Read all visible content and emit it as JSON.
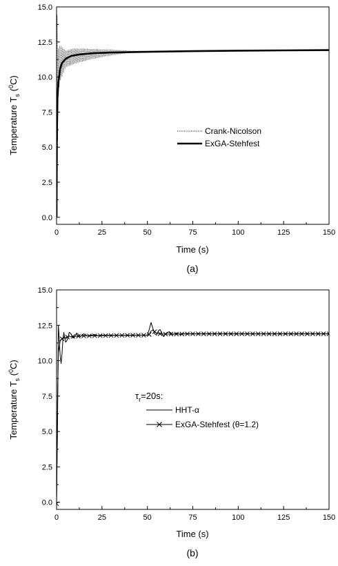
{
  "chart_data": [
    {
      "type": "line",
      "caption": "(a)",
      "xlabel": "Time (s)",
      "ylabel_main": "Temperature T",
      "ylabel_sub": "s",
      "ylabel_open": " (",
      "ylabel_sup": "0",
      "ylabel_close": "C)",
      "xlim": [
        0,
        150
      ],
      "ylim": [
        -0.5,
        15.0
      ],
      "x_ticks": [
        "0",
        "25",
        "50",
        "75",
        "100",
        "125",
        "150"
      ],
      "y_ticks": [
        "0.0",
        "2.5",
        "5.0",
        "7.5",
        "10.0",
        "12.5",
        "15.0"
      ],
      "legend_position": "center-right",
      "series": [
        {
          "name": "Crank-Nicolson",
          "style": "dotted-oscillating",
          "x": [
            0,
            0.3,
            0.6,
            1,
            2,
            5,
            10,
            20,
            30,
            40,
            50,
            75,
            100,
            125,
            150
          ],
          "y": [
            0.0,
            15.0,
            9.0,
            10.5,
            11.0,
            11.3,
            11.5,
            11.65,
            11.75,
            11.8,
            11.83,
            11.86,
            11.88,
            11.9,
            11.92
          ],
          "amplitude": [
            0,
            0,
            4.0,
            1.5,
            1.3,
            0.6,
            0.55,
            0.35,
            0.22,
            0.08,
            0.03,
            0,
            0,
            0,
            0
          ]
        },
        {
          "name": "ExGA-Stehfest",
          "style": "thick-solid",
          "x": [
            0,
            0.2,
            0.5,
            1,
            2,
            3,
            5,
            8,
            12,
            20,
            30,
            50,
            75,
            100,
            125,
            150
          ],
          "y": [
            0.0,
            6.0,
            8.5,
            9.6,
            10.6,
            11.0,
            11.3,
            11.5,
            11.6,
            11.7,
            11.75,
            11.8,
            11.85,
            11.88,
            11.9,
            11.92
          ]
        }
      ]
    },
    {
      "type": "line",
      "caption": "(b)",
      "xlabel": "Time (s)",
      "ylabel_main": "Temperature T",
      "ylabel_sub": "s",
      "ylabel_open": " (",
      "ylabel_sup": "0",
      "ylabel_close": "C)",
      "xlim": [
        0,
        150
      ],
      "ylim": [
        -0.5,
        15.0
      ],
      "x_ticks": [
        "0",
        "25",
        "50",
        "75",
        "100",
        "125",
        "150"
      ],
      "y_ticks": [
        "0.0",
        "2.5",
        "5.0",
        "7.5",
        "10.0",
        "12.5",
        "15.0"
      ],
      "legend_position": "center-right",
      "annotation_main": "τ",
      "annotation_sub": "r",
      "annotation_rest": "=20s:",
      "series": [
        {
          "name": "HHT-α",
          "style": "thin-solid",
          "x": [
            0,
            0.5,
            1,
            1.5,
            2,
            2.5,
            3,
            3.5,
            4,
            4.5,
            5,
            6,
            7,
            8,
            9,
            10,
            11,
            12,
            13,
            14,
            15,
            17,
            19,
            21,
            23,
            25,
            30,
            35,
            40,
            45,
            50,
            51,
            52,
            53,
            54,
            55,
            56,
            57,
            58,
            59,
            60,
            62,
            64,
            66,
            68,
            70,
            75,
            100,
            125,
            150
          ],
          "y": [
            0.0,
            5.0,
            12.5,
            11.5,
            10.3,
            9.8,
            10.5,
            11.5,
            12.0,
            11.6,
            11.3,
            11.5,
            12.0,
            11.9,
            11.6,
            11.7,
            11.95,
            11.85,
            11.7,
            11.8,
            11.9,
            11.75,
            11.8,
            11.85,
            11.75,
            11.8,
            11.8,
            11.8,
            11.78,
            11.8,
            11.8,
            12.2,
            12.7,
            12.3,
            11.9,
            11.8,
            12.1,
            12.2,
            11.9,
            11.7,
            11.9,
            12.05,
            11.85,
            11.95,
            11.85,
            11.9,
            11.9,
            11.9,
            11.9,
            11.9
          ]
        },
        {
          "name": "ExGA-Stehfest (θ=1.2)",
          "style": "solid-with-x-markers",
          "x": [
            0,
            0.5,
            1,
            2,
            3,
            4,
            5,
            7,
            10,
            15,
            20,
            25,
            30,
            35,
            40,
            45,
            50,
            51,
            52,
            53,
            54,
            55,
            57,
            60,
            65,
            70,
            75,
            100,
            125,
            150
          ],
          "y": [
            -0.1,
            7.0,
            10.6,
            11.4,
            11.55,
            11.6,
            11.65,
            11.7,
            11.72,
            11.75,
            11.76,
            11.77,
            11.78,
            11.79,
            11.8,
            11.8,
            11.8,
            11.85,
            12.1,
            12.15,
            12.05,
            11.95,
            11.9,
            11.88,
            11.88,
            11.89,
            11.9,
            11.9,
            11.9,
            11.9
          ],
          "marker_x": [
            0,
            3,
            6,
            9,
            12,
            15,
            18,
            21,
            24,
            27,
            30,
            33,
            36,
            39,
            42,
            45,
            48,
            51,
            54,
            57,
            60,
            63,
            66,
            69,
            72,
            75,
            78,
            81,
            84,
            87,
            90,
            93,
            96,
            99,
            102,
            105,
            108,
            111,
            114,
            117,
            120,
            123,
            126,
            129,
            132,
            135,
            138,
            141,
            144,
            147,
            150
          ]
        }
      ]
    }
  ]
}
